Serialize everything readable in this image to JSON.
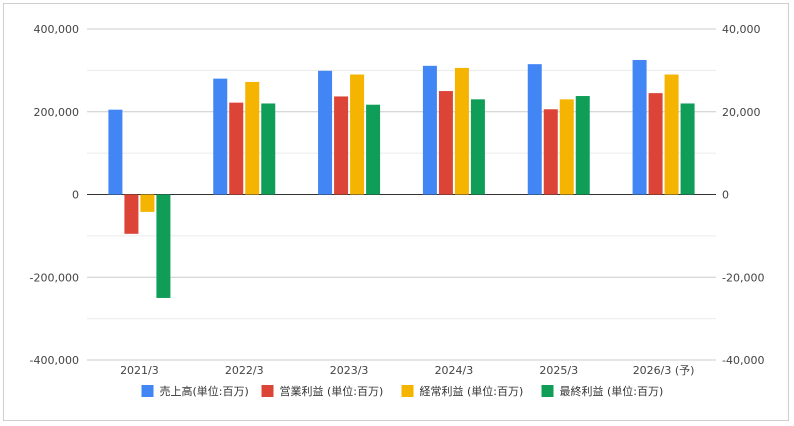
{
  "chart_data": {
    "type": "bar",
    "categories": [
      "2021/3",
      "2022/3",
      "2023/3",
      "2024/3",
      "2025/3",
      "2026/3 (予)"
    ],
    "series": [
      {
        "name": "売上高(単位:百万)",
        "axis": "left",
        "color": "#4285f4",
        "values": [
          205000,
          280000,
          299000,
          311000,
          315000,
          325000
        ]
      },
      {
        "name": "営業利益 (単位:百万)",
        "axis": "right",
        "color": "#db4437",
        "values": [
          -9500,
          22200,
          23700,
          25000,
          20600,
          24500
        ]
      },
      {
        "name": "経常利益 (単位:百万)",
        "axis": "right",
        "color": "#f4b400",
        "values": [
          -4200,
          27200,
          29000,
          30600,
          23000,
          29000
        ]
      },
      {
        "name": "最終利益 (単位:百万)",
        "axis": "right",
        "color": "#0f9d58",
        "values": [
          -25000,
          22000,
          21700,
          23000,
          23800,
          22000
        ]
      }
    ],
    "y_left": {
      "ticks": [
        "400,000",
        "200,000",
        "0",
        "-200,000",
        "-400,000"
      ],
      "ylim": [
        -400000,
        400000
      ]
    },
    "y_right": {
      "ticks": [
        "40,000",
        "20,000",
        "0",
        "-20,000",
        "-40,000"
      ],
      "ylim": [
        -40000,
        40000
      ]
    },
    "grid": true,
    "legend_position": "bottom"
  }
}
